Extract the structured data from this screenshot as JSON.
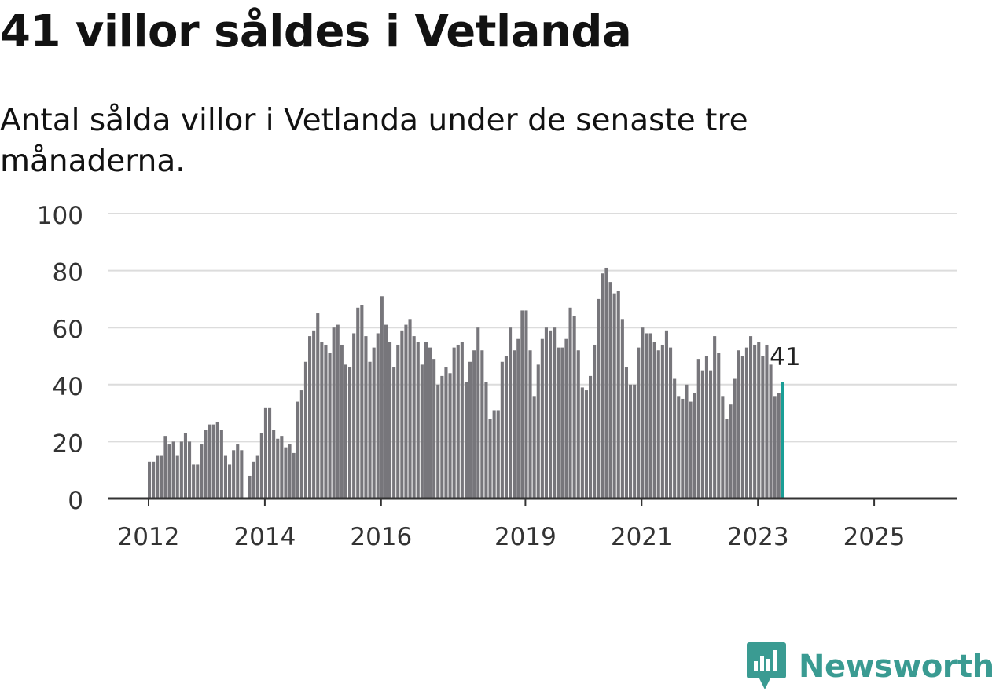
{
  "header": {
    "title": "41 villor såldes i Vetlanda",
    "subtitle": "Antal sålda villor i Vetlanda under de senaste tre månaderna."
  },
  "brand": {
    "name": "Newsworthy",
    "color": "#3a9b92"
  },
  "chart_data": {
    "type": "bar",
    "ylim": [
      0,
      100
    ],
    "yticks": [
      0,
      20,
      40,
      60,
      80,
      100
    ],
    "xtick_labels": [
      "2012",
      "2014",
      "2016",
      "2019",
      "2021",
      "2023",
      "2025"
    ],
    "grid": true,
    "bar_color": "#77767b",
    "highlight_color": "#1a9e96",
    "highlight_label": "41",
    "values": [
      13,
      13,
      15,
      15,
      22,
      19,
      20,
      15,
      20,
      23,
      20,
      12,
      12,
      19,
      24,
      26,
      26,
      27,
      24,
      15,
      12,
      17,
      19,
      17,
      0,
      8,
      13,
      15,
      23,
      32,
      32,
      24,
      21,
      22,
      18,
      19,
      16,
      34,
      38,
      48,
      57,
      59,
      65,
      55,
      54,
      51,
      60,
      61,
      54,
      47,
      46,
      58,
      67,
      68,
      57,
      48,
      53,
      58,
      71,
      61,
      55,
      46,
      54,
      59,
      61,
      63,
      57,
      55,
      47,
      55,
      53,
      49,
      40,
      43,
      46,
      44,
      53,
      54,
      55,
      41,
      48,
      52,
      60,
      52,
      41,
      28,
      31,
      31,
      48,
      50,
      60,
      52,
      56,
      66,
      66,
      52,
      36,
      47,
      56,
      60,
      59,
      60,
      53,
      53,
      56,
      67,
      64,
      52,
      39,
      38,
      43,
      54,
      70,
      79,
      81,
      76,
      72,
      73,
      63,
      46,
      40,
      40,
      53,
      60,
      58,
      58,
      55,
      52,
      54,
      59,
      53,
      42,
      36,
      35,
      40,
      34,
      37,
      49,
      45,
      50,
      45,
      57,
      51,
      36,
      28,
      33,
      42,
      52,
      50,
      53,
      57,
      54,
      55,
      50,
      54,
      47,
      36,
      37,
      41
    ]
  }
}
